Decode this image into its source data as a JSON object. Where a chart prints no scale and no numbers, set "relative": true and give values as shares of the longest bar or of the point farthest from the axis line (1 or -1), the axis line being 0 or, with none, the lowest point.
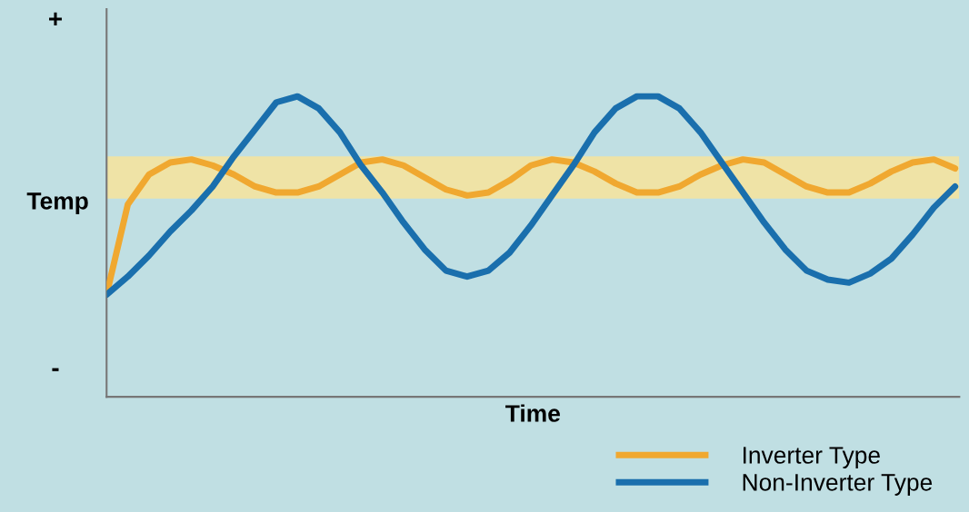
{
  "chart_data": {
    "type": "line",
    "relative": true,
    "xlabel": "Time",
    "ylabel": "Temp",
    "categories": [
      null,
      null,
      null,
      null,
      null,
      null,
      null,
      null,
      null,
      null,
      null,
      null,
      null,
      null,
      null,
      null,
      null,
      null,
      null,
      null,
      null,
      null,
      null,
      null,
      null,
      null,
      null,
      null,
      null,
      null,
      null,
      null,
      null,
      null,
      null,
      null,
      null,
      null,
      null,
      null,
      null
    ],
    "series": [
      {
        "name": "Inverter Type",
        "color": "#f0a830",
        "values": [
          0.34,
          0.64,
          0.74,
          0.78,
          0.79,
          0.77,
          0.74,
          0.7,
          0.68,
          0.68,
          0.7,
          0.74,
          0.78,
          0.79,
          0.77,
          0.73,
          0.69,
          0.67,
          0.68,
          0.72,
          0.77,
          0.79,
          0.78,
          0.75,
          0.71,
          0.68,
          0.68,
          0.7,
          0.74,
          0.77,
          0.79,
          0.78,
          0.74,
          0.7,
          0.68,
          0.68,
          0.71,
          0.75,
          0.78,
          0.79,
          0.76
        ]
      },
      {
        "name": "Non-Inverter Type",
        "color": "#1a6fad",
        "values": [
          0.34,
          0.4,
          0.47,
          0.55,
          0.62,
          0.7,
          0.8,
          0.89,
          0.98,
          1.0,
          0.96,
          0.88,
          0.77,
          0.68,
          0.58,
          0.49,
          0.42,
          0.4,
          0.42,
          0.48,
          0.57,
          0.67,
          0.77,
          0.88,
          0.96,
          1.0,
          1.0,
          0.96,
          0.88,
          0.78,
          0.68,
          0.58,
          0.49,
          0.42,
          0.39,
          0.38,
          0.41,
          0.46,
          0.54,
          0.63,
          0.7
        ]
      }
    ],
    "bands": [
      {
        "axis": "y",
        "from": 0.66,
        "to": 0.8,
        "color": "#efe3a6"
      }
    ],
    "annotations": [
      "+",
      "-"
    ],
    "legend": "bottom right",
    "marker": "none",
    "line_style": "solid"
  }
}
